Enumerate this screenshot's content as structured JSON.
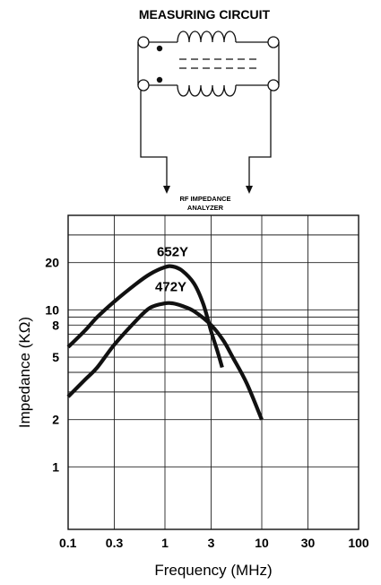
{
  "circuit": {
    "title": "MEASURING CIRCUIT",
    "analyzer_line1": "RF IMPEDANCE",
    "analyzer_line2": "ANALYZER"
  },
  "chart_data": {
    "type": "line",
    "title": "",
    "xlabel": "Frequency (MHz)",
    "ylabel": "Impedance (KΩ)",
    "xscale": "log",
    "yscale": "log",
    "xlim": [
      0.1,
      100
    ],
    "ylim": [
      0.4,
      40
    ],
    "grid": true,
    "legend": "none",
    "x_ticks": [
      {
        "value": 0.1,
        "label": "0.1"
      },
      {
        "value": 0.3,
        "label": "0.3"
      },
      {
        "value": 1,
        "label": "1"
      },
      {
        "value": 3,
        "label": "3"
      },
      {
        "value": 10,
        "label": "10"
      },
      {
        "value": 30,
        "label": "30"
      },
      {
        "value": 100,
        "label": "100"
      }
    ],
    "y_ticks": [
      {
        "value": 1,
        "label": "1"
      },
      {
        "value": 2,
        "label": "2"
      },
      {
        "value": 5,
        "label": "5"
      },
      {
        "value": 8,
        "label": "8"
      },
      {
        "value": 10,
        "label": "10"
      },
      {
        "value": 20,
        "label": "20"
      }
    ],
    "x_grid": [
      0.1,
      0.3,
      1,
      3,
      10,
      30,
      100
    ],
    "y_grid": [
      1,
      2,
      3,
      4,
      5,
      6,
      7,
      8,
      9,
      10,
      20,
      30,
      40
    ],
    "series": [
      {
        "name": "652Y",
        "x": [
          0.1,
          0.15,
          0.2,
          0.3,
          0.5,
          0.7,
          1.0,
          1.2,
          1.5,
          2.0,
          2.5,
          3.0,
          3.5,
          3.9
        ],
        "y": [
          5.8,
          7.4,
          9.0,
          11.3,
          14.6,
          16.9,
          18.7,
          18.9,
          17.8,
          14.7,
          10.8,
          7.3,
          5.4,
          4.3
        ]
      },
      {
        "name": "472Y",
        "x": [
          0.1,
          0.15,
          0.2,
          0.3,
          0.5,
          0.7,
          1.0,
          1.2,
          1.5,
          2.0,
          3.0,
          4.0,
          5.0,
          7.0,
          10.0
        ],
        "y": [
          2.8,
          3.6,
          4.3,
          6.0,
          8.5,
          10.3,
          11.0,
          11.0,
          10.6,
          9.8,
          8.0,
          6.4,
          5.0,
          3.4,
          2.0
        ]
      }
    ],
    "annotations": [
      {
        "text": "652Y",
        "x": 1.2,
        "y": 22
      },
      {
        "text": "472Y",
        "x": 1.15,
        "y": 13.2
      }
    ],
    "colors": {
      "line": "#111111",
      "grid": "#222222",
      "frame": "#111111"
    }
  }
}
